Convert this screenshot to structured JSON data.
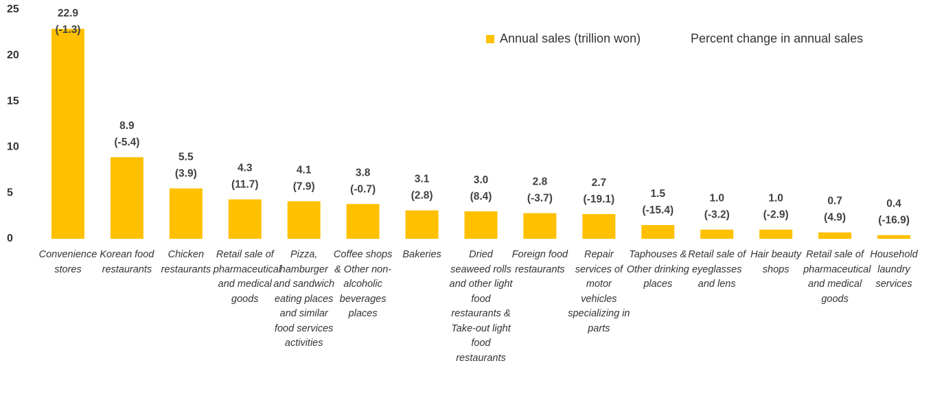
{
  "chart_data": {
    "type": "bar",
    "categories": [
      "Convenience stores",
      "Korean food restaurants",
      "Chicken restaurants",
      "Retail sale of pharmaceutical and medical goods",
      "Pizza, hamburger and sandwich eating places and similar food services activities",
      "Coffee shops & Other non-alcoholic beverages places",
      "Bakeries",
      "Dried seaweed rolls and other light food restaurants & Take-out light food restaurants",
      "Foreign food restaurants",
      "Repair services of motor vehicles specializing in parts",
      "Taphouses & Other drinking places",
      "Retail sale of eyeglasses and lens",
      "Hair beauty shops",
      "Retail sale of pharmaceutical and medical goods",
      "Household laundry services"
    ],
    "series": [
      {
        "name": "Annual sales (trillion won)",
        "color": "#FFC000",
        "values": [
          22.9,
          8.9,
          5.5,
          4.3,
          4.1,
          3.8,
          3.1,
          3.0,
          2.8,
          2.7,
          1.5,
          1.0,
          1.0,
          0.7,
          0.4
        ],
        "value_labels": [
          "22.9",
          "8.9",
          "5.5",
          "4.3",
          "4.1",
          "3.8",
          "3.1",
          "3.0",
          "2.8",
          "2.7",
          "1.5",
          "1.0",
          "1.0",
          "0.7",
          "0.4"
        ]
      },
      {
        "name": "Percent change in annual sales",
        "values": [
          -1.3,
          -5.4,
          3.9,
          11.7,
          7.9,
          -0.7,
          2.8,
          8.4,
          -3.7,
          -19.1,
          -15.4,
          -3.2,
          -2.9,
          4.9,
          -16.9
        ],
        "value_labels": [
          "(-1.3)",
          "(-5.4)",
          "(3.9)",
          "(11.7)",
          "(7.9)",
          "(-0.7)",
          "(2.8)",
          "(8.4)",
          "(-3.7)",
          "(-19.1)",
          "(-15.4)",
          "(-3.2)",
          "(-2.9)",
          "(4.9)",
          "(-16.9)"
        ]
      }
    ],
    "ylim": [
      0,
      25
    ],
    "yticks": [
      0,
      5,
      10,
      15,
      20,
      25
    ],
    "grid": false
  }
}
